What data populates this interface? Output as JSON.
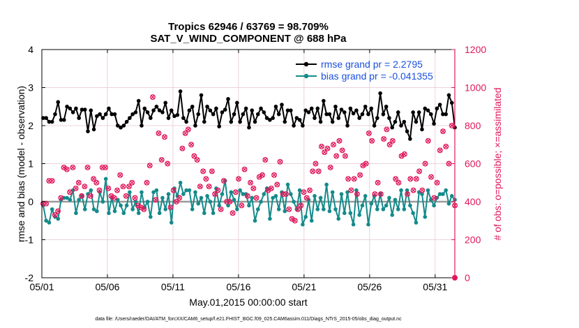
{
  "chart_data": {
    "type": "line",
    "title_line1": "Tropics 62946 / 63769 = 98.709%",
    "title_line2": "SAT_V_WIND_COMPONENT @ 688 hPa",
    "xlabel": "May.01,2015 00:00:00 start",
    "ylabel_left": "rmse and bias (model - observation)",
    "ylabel_right": "# of obs: o=possible; ×=assimilated",
    "footer": "data file: /Users/raeder/DAI/ATM_forcXX/CAM6_setup/f.e21.FHIST_BGC.f09_025.CAM6assim.011/Diags_NTrS_2015-05/obs_diag_output.nc",
    "xlim": [
      0,
      31.5
    ],
    "ylim_left": [
      -2,
      4
    ],
    "ylim_right": [
      0,
      1200
    ],
    "xticks": [
      0,
      5,
      10,
      15,
      20,
      25,
      30
    ],
    "xtick_labels": [
      "05/01",
      "05/06",
      "05/11",
      "05/16",
      "05/21",
      "05/26",
      "05/31"
    ],
    "yticks_left": [
      -2,
      -1,
      0,
      1,
      2,
      3,
      4
    ],
    "yticks_right": [
      0,
      200,
      400,
      600,
      800,
      1000,
      1200
    ],
    "series": [
      {
        "name": "rmse grand pr = 2.2795",
        "axis": "left",
        "color": "#000000",
        "values": [
          2.2,
          2.2,
          2.1,
          2.1,
          2.3,
          2.62,
          2.15,
          2.15,
          2.5,
          2.45,
          2.35,
          2.45,
          2.2,
          2.42,
          2.42,
          1.85,
          2.4,
          1.9,
          2.25,
          2.3,
          2.2,
          2.3,
          2.45,
          2.3,
          2.3,
          2.0,
          1.95,
          2.0,
          2.1,
          2.2,
          2.3,
          2.35,
          2.65,
          2.0,
          2.45,
          2.35,
          2.2,
          2.4,
          2.5,
          2.4,
          2.35,
          2.6,
          2.2,
          2.4,
          2.25,
          2.28,
          2.9,
          2.2,
          2.1,
          2.4,
          2.5,
          2.0,
          2.3,
          2.8,
          2.1,
          2.5,
          2.4,
          2.3,
          2.45,
          1.98,
          2.35,
          2.42,
          2.7,
          2.1,
          2.3,
          2.6,
          2.1,
          2.3,
          2.45,
          1.95,
          2.4,
          2.1,
          2.3,
          2.45,
          2.35,
          2.2,
          2.15,
          2.2,
          2.5,
          2.3,
          2.55,
          2.1,
          2.4,
          2.4,
          2.0,
          2.2,
          2.15,
          2.0,
          2.4,
          2.35,
          2.45,
          2.2,
          2.45,
          2.1,
          2.65,
          2.3,
          2.3,
          2.1,
          2.5,
          2.2,
          2.42,
          2.35,
          2.0,
          2.45,
          2.32,
          2.4,
          2.2,
          2.3,
          2.5,
          2.3,
          2.45,
          2.0,
          2.2,
          2.85,
          2.3,
          2.5,
          2.2,
          1.95,
          2.1,
          2.35,
          2.0,
          2.1,
          1.85,
          1.65,
          2.35,
          2.1,
          2.35,
          1.9,
          2.45,
          2.4,
          2.3,
          2.05,
          2.45,
          2.55,
          2.3,
          2.3,
          2.8,
          2.6,
          1.95
        ]
      },
      {
        "name": "bias grand pr = -0.041355",
        "axis": "left",
        "color": "#158a8a",
        "values": [
          -0.1,
          -0.5,
          -0.55,
          -0.2,
          -0.4,
          -0.45,
          0.05,
          0.1,
          0.1,
          0.05,
          0.3,
          -0.3,
          0.05,
          0.15,
          -0.2,
          0.2,
          0.3,
          -0.2,
          -0.25,
          0.25,
          0.0,
          0.6,
          -0.3,
          0.1,
          -0.25,
          0.05,
          -0.1,
          -0.3,
          -0.1,
          0.25,
          -0.2,
          0.0,
          -0.3,
          0.25,
          -0.15,
          0.0,
          -0.4,
          0.25,
          0.3,
          -0.3,
          0.1,
          -0.2,
          0.2,
          -0.55,
          0.35,
          0.15,
          0.5,
          0.2,
          0.3,
          0.3,
          -0.2,
          0.25,
          -0.05,
          0.1,
          -0.3,
          0.15,
          0.0,
          -0.3,
          0.35,
          -0.1,
          0.2,
          0.55,
          -0.1,
          0.25,
          0.05,
          -0.2,
          0.3,
          0.2,
          0.2,
          -0.1,
          0.1,
          -0.5,
          -0.2,
          0.0,
          0.2,
          0.35,
          -0.45,
          0.1,
          0.15,
          -0.2,
          0.25,
          -0.25,
          0.45,
          0.2,
          0.0,
          -0.2,
          0.3,
          -0.6,
          -0.4,
          0.05,
          -0.5,
          0.15,
          -0.2,
          0.1,
          -0.2,
          0.45,
          -0.25,
          0.25,
          -0.2,
          -0.45,
          0.2,
          -0.3,
          0.25,
          -0.3,
          -0.6,
          0.3,
          -0.35,
          -0.1,
          0.15,
          -0.6,
          -0.05,
          0.15,
          -0.2,
          0.2,
          -0.2,
          -0.1,
          0.1,
          -0.35,
          0.05,
          -0.2,
          0.3,
          -0.2,
          0.3,
          -0.1,
          -0.3,
          -0.55,
          0.25,
          0.2,
          -0.4,
          0.3,
          0.05,
          -0.1,
          0.1,
          0.2,
          0.2,
          0.3,
          -0.05,
          0.15,
          0.05
        ]
      },
      {
        "name": "obs possible",
        "axis": "right",
        "color": "#e0185a",
        "marker": "o",
        "values": [
          390,
          390,
          510,
          510,
          330,
          350,
          420,
          580,
          570,
          450,
          580,
          470,
          500,
          430,
          480,
          580,
          430,
          520,
          500,
          460,
          580,
          580,
          470,
          430,
          420,
          460,
          540,
          480,
          430,
          480,
          500,
          420,
          380,
          370,
          360,
          500,
          590,
          950,
          410,
          760,
          620,
          740,
          600,
          370,
          460,
          400,
          420,
          680,
          760,
          780,
          700,
          640,
          620,
          480,
          560,
          520,
          480,
          560,
          440,
          460,
          360,
          510,
          400,
          400,
          340,
          450,
          520,
          380,
          570,
          430,
          500,
          470,
          420,
          530,
          540,
          620,
          460,
          470,
          540,
          490,
          610,
          440,
          440,
          360,
          310,
          300,
          360,
          380,
          450,
          420,
          460,
          560,
          600,
          560,
          690,
          660,
          680,
          580,
          700,
          640,
          720,
          670,
          640,
          520,
          460,
          520,
          440,
          540,
          590,
          600,
          760,
          720,
          440,
          500,
          440,
          730,
          780,
          700,
          720,
          520,
          500,
          640,
          650,
          440,
          520,
          460,
          520,
          560,
          460,
          600,
          720,
          530,
          420,
          500,
          670,
          770,
          690,
          600,
          800,
          380
        ]
      },
      {
        "name": "obs assimilated",
        "axis": "right",
        "color": "#e0185a",
        "marker": "x",
        "values": [
          390,
          390,
          510,
          510,
          330,
          350,
          420,
          580,
          570,
          450,
          580,
          470,
          500,
          430,
          480,
          580,
          430,
          520,
          500,
          460,
          580,
          580,
          470,
          430,
          420,
          460,
          540,
          480,
          430,
          480,
          500,
          420,
          380,
          370,
          360,
          500,
          590,
          950,
          410,
          760,
          620,
          740,
          600,
          370,
          460,
          400,
          420,
          680,
          760,
          780,
          700,
          640,
          620,
          480,
          560,
          520,
          480,
          560,
          440,
          460,
          360,
          510,
          400,
          400,
          340,
          450,
          520,
          380,
          570,
          430,
          500,
          470,
          420,
          530,
          540,
          620,
          460,
          470,
          540,
          490,
          610,
          440,
          440,
          360,
          310,
          300,
          360,
          380,
          450,
          420,
          460,
          560,
          600,
          560,
          690,
          660,
          680,
          580,
          700,
          640,
          720,
          670,
          640,
          520,
          460,
          520,
          440,
          540,
          590,
          600,
          760,
          720,
          440,
          500,
          440,
          730,
          780,
          700,
          720,
          520,
          500,
          640,
          650,
          440,
          520,
          460,
          520,
          560,
          460,
          600,
          720,
          530,
          420,
          500,
          670,
          770,
          690,
          600,
          800,
          380
        ]
      }
    ]
  },
  "style": {
    "accent_right": "#e0185a",
    "legend_text": "#1a4fe0",
    "grid": "#e6c6d2",
    "zero_line": "#9a9a9a"
  }
}
